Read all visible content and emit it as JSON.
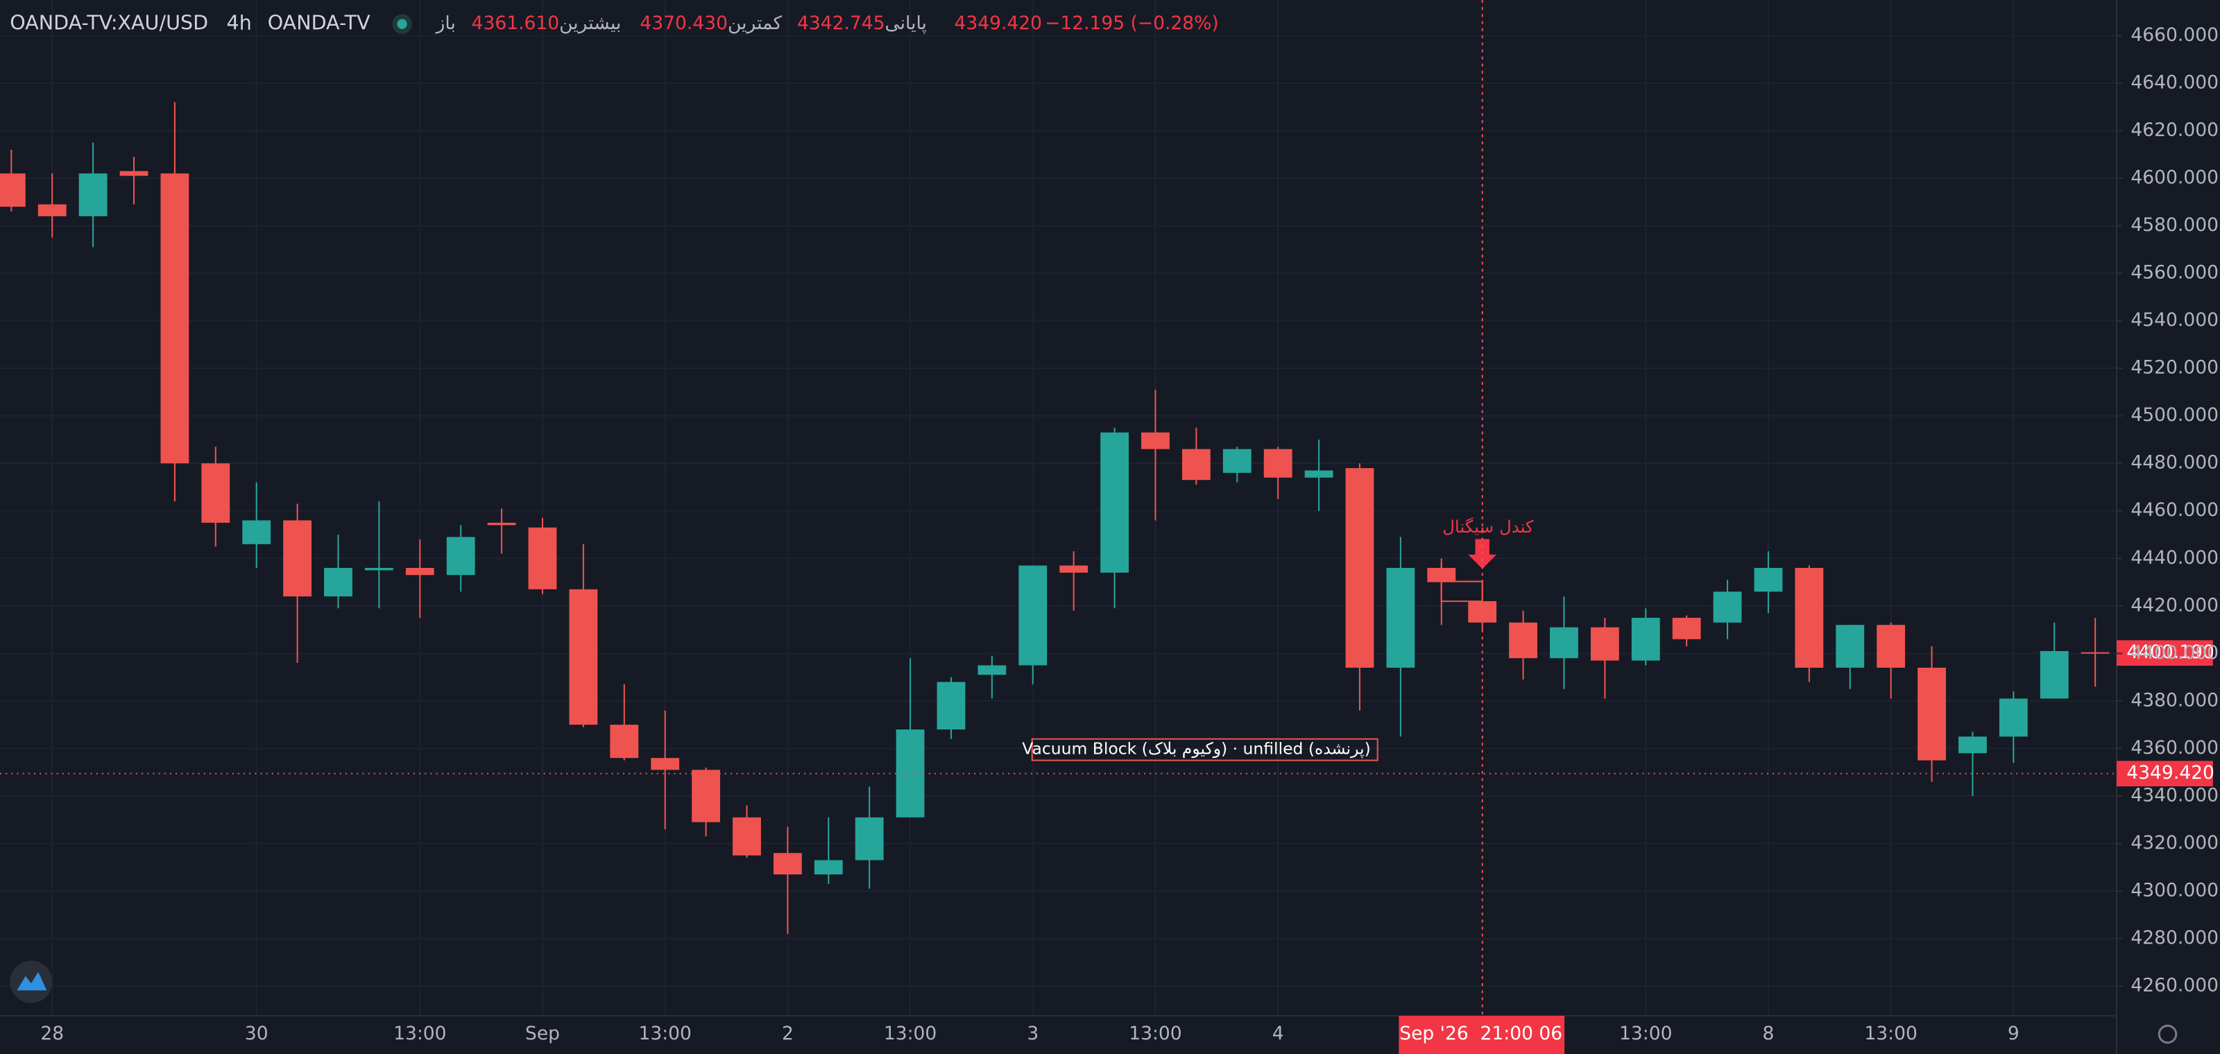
{
  "chart_data": {
    "type": "candlestick",
    "symbol": "OANDA-TV:XAU/USD",
    "interval": "4h",
    "source": "OANDA-TV",
    "ohlc_legend": [
      {
        "label": "باز",
        "value": "4361.610"
      },
      {
        "label": "بیشترین",
        "value": "4370.430"
      },
      {
        "label": "کمترین",
        "value": "4342.745"
      },
      {
        "label": "پایانی",
        "value": "4349.420"
      }
    ],
    "change": "−12.195 (−0.28%)",
    "up_color": "#26a69a",
    "down_color": "#ef5350",
    "grid": true,
    "categories": [
      null,
      "28",
      null,
      null,
      null,
      null,
      "30",
      null,
      null,
      null,
      "13:00",
      null,
      null,
      "Sep",
      null,
      null,
      "13:00",
      null,
      null,
      "2",
      null,
      null,
      "13:00",
      null,
      null,
      "3",
      null,
      null,
      "13:00",
      null,
      null,
      "4",
      null,
      null,
      null,
      null,
      null,
      null,
      null,
      null,
      "13:00",
      null,
      null,
      "8",
      null,
      null,
      "13:00",
      null,
      null,
      "9",
      null,
      null
    ],
    "open": [
      4602,
      4589,
      4584,
      4603,
      4602,
      4480,
      4446,
      4456,
      4424,
      4435,
      4436,
      4433,
      4455,
      4453,
      4427,
      4370,
      4356,
      4351,
      4331,
      4316,
      4307,
      4313,
      4331,
      4368,
      4391,
      4395,
      4437,
      4434,
      4493,
      4486,
      4476,
      4486,
      4474,
      4478,
      4394,
      4436,
      4422,
      4413,
      4398,
      4411,
      4397,
      4415,
      4413,
      4426,
      4436,
      4394,
      4412,
      4394,
      4358,
      4365,
      4381,
      4400.5
    ],
    "high": [
      4612,
      4602,
      4615,
      4609,
      4632,
      4487,
      4472,
      4463,
      4450,
      4464,
      4448,
      4454,
      4461,
      4457,
      4446,
      4387,
      4376,
      4352,
      4336,
      4327,
      4331,
      4344,
      4398,
      4390,
      4399,
      4437,
      4443,
      4495,
      4511,
      4495,
      4487,
      4487,
      4490,
      4480,
      4449,
      4440,
      4431,
      4418,
      4424,
      4415,
      4419,
      4416,
      4431,
      4443,
      4437,
      4412,
      4413,
      4403,
      4367,
      4384,
      4413,
      4415
    ],
    "low": [
      4586,
      4575,
      4571,
      4589,
      4464,
      4445,
      4436,
      4396,
      4419,
      4419,
      4415,
      4426,
      4442,
      4425,
      4369,
      4355,
      4326,
      4323,
      4314,
      4282,
      4303,
      4301,
      4331,
      4364,
      4381,
      4387,
      4418,
      4419,
      4456,
      4471,
      4472,
      4465,
      4460,
      4376,
      4365,
      4412,
      4410,
      4389,
      4385,
      4381,
      4395,
      4403,
      4406,
      4417,
      4388,
      4385,
      4381,
      4346,
      4340,
      4354,
      4381,
      4386
    ],
    "close": [
      4588,
      4584,
      4602,
      4601,
      4480,
      4455,
      4456,
      4424,
      4436,
      4436,
      4433,
      4449,
      4454,
      4427,
      4370,
      4356,
      4351,
      4329,
      4315,
      4307,
      4313,
      4331,
      4368,
      4388,
      4395,
      4437,
      4434,
      4493,
      4486,
      4473,
      4486,
      4474,
      4477,
      4394,
      4436,
      4430,
      4413,
      4398,
      4411,
      4397,
      4415,
      4406,
      4426,
      4436,
      4394,
      4412,
      4394,
      4355,
      4365,
      4381,
      4401,
      4400.19
    ],
    "ylim": [
      4247.5,
      4675
    ],
    "yticks": [
      {
        "value": 4260,
        "label": "4260.000"
      },
      {
        "value": 4280,
        "label": "4280.000"
      },
      {
        "value": 4300,
        "label": "4300.000"
      },
      {
        "value": 4320,
        "label": "4320.000"
      },
      {
        "value": 4340,
        "label": "4340.000"
      },
      {
        "value": 4360,
        "label": "4360.000"
      },
      {
        "value": 4380,
        "label": "4380.000"
      },
      {
        "value": 4400,
        "label": "4400.000"
      },
      {
        "value": 4420,
        "label": "4420.000"
      },
      {
        "value": 4440,
        "label": "4440.000"
      },
      {
        "value": 4460,
        "label": "4460.000"
      },
      {
        "value": 4480,
        "label": "4480.000"
      },
      {
        "value": 4500,
        "label": "4500.000"
      },
      {
        "value": 4520,
        "label": "4520.000"
      },
      {
        "value": 4540,
        "label": "4540.000"
      },
      {
        "value": 4560,
        "label": "4560.000"
      },
      {
        "value": 4580,
        "label": "4580.000"
      },
      {
        "value": 4600,
        "label": "4600.000"
      },
      {
        "value": 4620,
        "label": "4620.000"
      },
      {
        "value": 4640,
        "label": "4640.000"
      },
      {
        "value": 4660,
        "label": "4660.000"
      }
    ],
    "price_lines": [
      {
        "value": 4400.19,
        "label": "4400.190",
        "style": "solid"
      },
      {
        "value": 4349.42,
        "label": "4349.420",
        "style": "dotted"
      }
    ],
    "crosshair_label": "Sep '26  21:00 06",
    "signal_label": "کندل سیگنال",
    "zone": {
      "label": "Vacuum Block (وکیوم بلاک) · unfilled (پرنشده)",
      "top": 4364,
      "bottom": 4355
    }
  }
}
